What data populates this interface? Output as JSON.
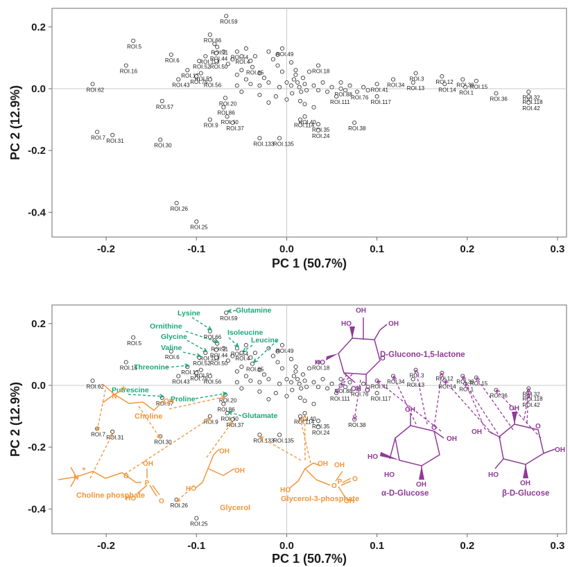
{
  "chart_data": [
    {
      "type": "scatter",
      "xlabel": "PC 1 (50.7%)",
      "ylabel": "PC 2 (12.9%)",
      "xlim": [
        -0.26,
        0.31
      ],
      "ylim": [
        -0.48,
        0.26
      ],
      "x_ticks": [
        "-0.2",
        "-0.1",
        "0.0",
        "0.1",
        "0.2",
        "0.3"
      ],
      "y_ticks": [
        "0.2",
        "0.0",
        "-0.2",
        "-0.4"
      ],
      "grid": false,
      "labeled_points": [
        {
          "label": "ROI.59",
          "x": -0.067,
          "y": 0.235
        },
        {
          "label": "ROI.5",
          "x": -0.17,
          "y": 0.155
        },
        {
          "label": "ROI.66",
          "x": -0.085,
          "y": 0.175
        },
        {
          "label": "ROI.11",
          "x": -0.077,
          "y": 0.135
        },
        {
          "label": "ROI.6",
          "x": -0.128,
          "y": 0.11
        },
        {
          "label": "ROI.54",
          "x": -0.055,
          "y": 0.12
        },
        {
          "label": "ROI.44",
          "x": -0.078,
          "y": 0.115
        },
        {
          "label": "ROI.119",
          "x": -0.09,
          "y": 0.105
        },
        {
          "label": "ROI.4",
          "x": -0.05,
          "y": 0.105
        },
        {
          "label": "ROI.16",
          "x": -0.178,
          "y": 0.075
        },
        {
          "label": "ROI.50",
          "x": -0.078,
          "y": 0.09
        },
        {
          "label": "ROI.52",
          "x": -0.097,
          "y": 0.09
        },
        {
          "label": "ROI.17",
          "x": -0.11,
          "y": 0.06
        },
        {
          "label": "ROI.51",
          "x": -0.095,
          "y": 0.05
        },
        {
          "label": "ROI.75",
          "x": -0.1,
          "y": 0.04
        },
        {
          "label": "ROI.43",
          "x": -0.12,
          "y": 0.03
        },
        {
          "label": "ROI.56",
          "x": -0.085,
          "y": 0.03
        },
        {
          "label": "ROI.65",
          "x": -0.038,
          "y": 0.07
        },
        {
          "label": "ROI.49",
          "x": -0.005,
          "y": 0.13
        },
        {
          "label": "ROI.18",
          "x": 0.035,
          "y": 0.075
        },
        {
          "label": "ROI.62",
          "x": -0.215,
          "y": 0.015
        },
        {
          "label": "ROI.57",
          "x": -0.138,
          "y": -0.04
        },
        {
          "label": "ROI.20",
          "x": -0.068,
          "y": -0.03
        },
        {
          "label": "ROI.86",
          "x": -0.07,
          "y": -0.06
        },
        {
          "label": "ROI.60",
          "x": -0.066,
          "y": -0.09
        },
        {
          "label": "ROI.9",
          "x": -0.085,
          "y": -0.1
        },
        {
          "label": "ROI.37",
          "x": -0.06,
          "y": -0.11
        },
        {
          "label": "ROI.7",
          "x": -0.21,
          "y": -0.14
        },
        {
          "label": "ROI.31",
          "x": -0.193,
          "y": -0.15
        },
        {
          "label": "ROI.30",
          "x": -0.14,
          "y": -0.165
        },
        {
          "label": "ROI.133",
          "x": -0.03,
          "y": -0.16
        },
        {
          "label": "ROI.135",
          "x": -0.008,
          "y": -0.16
        },
        {
          "label": "ROI.40",
          "x": 0.02,
          "y": -0.09
        },
        {
          "label": "ROI.114",
          "x": 0.015,
          "y": -0.1
        },
        {
          "label": "ROI.35",
          "x": 0.035,
          "y": -0.115
        },
        {
          "label": "ROI.24",
          "x": 0.035,
          "y": -0.135
        },
        {
          "label": "ROI.38",
          "x": 0.075,
          "y": -0.11
        },
        {
          "label": "ROI.88",
          "x": 0.06,
          "y": 0.0
        },
        {
          "label": "ROI.76",
          "x": 0.078,
          "y": -0.01
        },
        {
          "label": "ROI.111",
          "x": 0.055,
          "y": -0.025
        },
        {
          "label": "ROI.41",
          "x": 0.1,
          "y": 0.015
        },
        {
          "label": "ROI.117",
          "x": 0.1,
          "y": -0.025
        },
        {
          "label": "ROI.34",
          "x": 0.118,
          "y": 0.03
        },
        {
          "label": "ROI.3",
          "x": 0.143,
          "y": 0.05
        },
        {
          "label": "ROI.13",
          "x": 0.14,
          "y": 0.02
        },
        {
          "label": "ROI.12",
          "x": 0.172,
          "y": 0.04
        },
        {
          "label": "ROI.14",
          "x": 0.175,
          "y": 0.015
        },
        {
          "label": "ROI.39",
          "x": 0.195,
          "y": 0.03
        },
        {
          "label": "ROI.1",
          "x": 0.198,
          "y": 0.005
        },
        {
          "label": "ROI.15",
          "x": 0.21,
          "y": 0.025
        },
        {
          "label": "ROI.36",
          "x": 0.232,
          "y": -0.015
        },
        {
          "label": "ROI.32",
          "x": 0.268,
          "y": -0.01
        },
        {
          "label": "ROI.118",
          "x": 0.268,
          "y": -0.025
        },
        {
          "label": "ROI.42",
          "x": 0.268,
          "y": -0.045
        },
        {
          "label": "ROI.26",
          "x": -0.122,
          "y": -0.37
        },
        {
          "label": "ROI.25",
          "x": -0.1,
          "y": -0.43
        }
      ],
      "cluster_points": [
        {
          "x": -0.08,
          "y": 0.145
        },
        {
          "x": -0.07,
          "y": 0.12
        },
        {
          "x": -0.06,
          "y": 0.095
        },
        {
          "x": -0.065,
          "y": 0.08
        },
        {
          "x": -0.05,
          "y": 0.06
        },
        {
          "x": -0.045,
          "y": 0.03
        },
        {
          "x": -0.04,
          "y": 0.015
        },
        {
          "x": -0.03,
          "y": 0.05
        },
        {
          "x": -0.025,
          "y": 0.035
        },
        {
          "x": -0.03,
          "y": 0.01
        },
        {
          "x": -0.02,
          "y": 0.02
        },
        {
          "x": -0.015,
          "y": 0.095
        },
        {
          "x": -0.02,
          "y": 0.12
        },
        {
          "x": -0.035,
          "y": 0.105
        },
        {
          "x": -0.04,
          "y": 0.09
        },
        {
          "x": -0.01,
          "y": 0.075
        },
        {
          "x": -0.005,
          "y": 0.055
        },
        {
          "x": 0.0,
          "y": 0.02
        },
        {
          "x": -0.008,
          "y": 0.005
        },
        {
          "x": 0.005,
          "y": 0.01
        },
        {
          "x": 0.008,
          "y": 0.03
        },
        {
          "x": 0.01,
          "y": 0.045
        },
        {
          "x": 0.012,
          "y": 0.02
        },
        {
          "x": 0.014,
          "y": 0.005
        },
        {
          "x": 0.016,
          "y": -0.01
        },
        {
          "x": 0.006,
          "y": -0.015
        },
        {
          "x": 0.018,
          "y": 0.035
        },
        {
          "x": 0.02,
          "y": 0.015
        },
        {
          "x": 0.022,
          "y": -0.005
        },
        {
          "x": 0.01,
          "y": 0.06
        },
        {
          "x": 0.025,
          "y": 0.055
        },
        {
          "x": 0.03,
          "y": 0.01
        },
        {
          "x": 0.035,
          "y": -0.005
        },
        {
          "x": 0.04,
          "y": 0.02
        },
        {
          "x": 0.045,
          "y": -0.01
        },
        {
          "x": -0.012,
          "y": -0.025
        },
        {
          "x": 0.0,
          "y": -0.035
        },
        {
          "x": 0.015,
          "y": -0.04
        },
        {
          "x": 0.02,
          "y": -0.05
        },
        {
          "x": 0.03,
          "y": -0.06
        },
        {
          "x": -0.02,
          "y": -0.045
        },
        {
          "x": -0.03,
          "y": -0.02
        },
        {
          "x": -0.05,
          "y": -0.01
        },
        {
          "x": -0.055,
          "y": 0.01
        },
        {
          "x": -0.055,
          "y": 0.045
        },
        {
          "x": 0.05,
          "y": 0.005
        },
        {
          "x": 0.06,
          "y": 0.02
        },
        {
          "x": 0.065,
          "y": -0.005
        },
        {
          "x": 0.07,
          "y": 0.01
        },
        {
          "x": 0.085,
          "y": 0.005
        },
        {
          "x": 0.09,
          "y": -0.005
        },
        {
          "x": -0.045,
          "y": 0.13
        },
        {
          "x": -0.01,
          "y": 0.11
        },
        {
          "x": 0.005,
          "y": 0.085
        }
      ]
    }
  ],
  "annotations": {
    "green": {
      "color": "#1aa67a",
      "labels": [
        "Lysine",
        "Glutamine",
        "Ornithine",
        "Glycine",
        "Isoleucine",
        "Leucine",
        "Valine",
        "Threonine",
        "Putrescine",
        "Proline",
        "Glutamate"
      ]
    },
    "orange": {
      "color": "#f0963c",
      "labels": [
        "Choline",
        "Choline phosphate",
        "Glycerol",
        "Glycerol-3-phosphate"
      ],
      "atoms": {
        "N": "N",
        "charge": "+",
        "OH": "OH",
        "HO": "HO",
        "O": "O",
        "P": "P"
      }
    },
    "purple": {
      "color": "#8e3a96",
      "labels": [
        "D-Glucono-1,5-lactone",
        "α-D-Glucose",
        "β-D-Glucose"
      ],
      "atoms": {
        "OH": "OH",
        "HO": "HO",
        "O": "O"
      }
    }
  }
}
